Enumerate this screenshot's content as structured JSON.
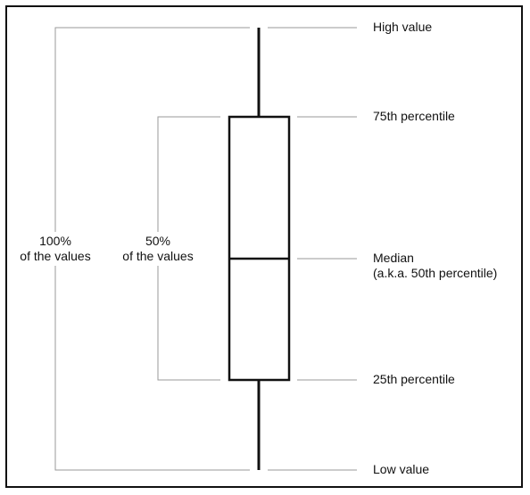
{
  "labels": {
    "high": "High value",
    "p75": "75th percentile",
    "median_line1": "Median",
    "median_line2": "(a.k.a. 50th percentile)",
    "p25": "25th percentile",
    "low": "Low value"
  },
  "brackets": {
    "outer_line1": "100%",
    "outer_line2": "of the values",
    "inner_line1": "50%",
    "inner_line2": "of the values"
  },
  "colors": {
    "box_stroke": "#111111",
    "guide_stroke": "#9a9a9a"
  }
}
